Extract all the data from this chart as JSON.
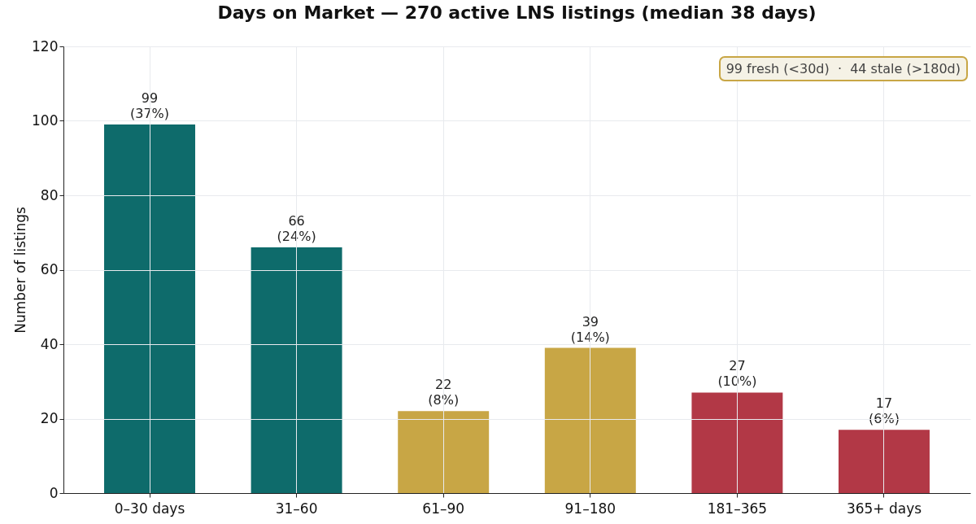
{
  "chart_data": {
    "type": "bar",
    "title": "Days on Market — 270 active LNS listings (median 38 days)",
    "ylabel": "Number of listings",
    "categories": [
      "0–30 days",
      "31–60",
      "61–90",
      "91–180",
      "181–365",
      "365+ days"
    ],
    "values": [
      99,
      66,
      22,
      39,
      27,
      17
    ],
    "colors": [
      "#0e6b6b",
      "#0e6b6b",
      "#c8a645",
      "#c8a645",
      "#b23846",
      "#b23846"
    ],
    "value_labels": [
      "99\n(37%)",
      "66\n(24%)",
      "22\n(8%)",
      "39\n(14%)",
      "27\n(10%)",
      "17\n(6%)"
    ],
    "ylim": [
      0,
      120
    ],
    "yticks": [
      0,
      20,
      40,
      60,
      80,
      100,
      120
    ],
    "grid": true,
    "annotations": [
      "99 fresh (<30d)  ·  44 stale (>180d)"
    ]
  }
}
